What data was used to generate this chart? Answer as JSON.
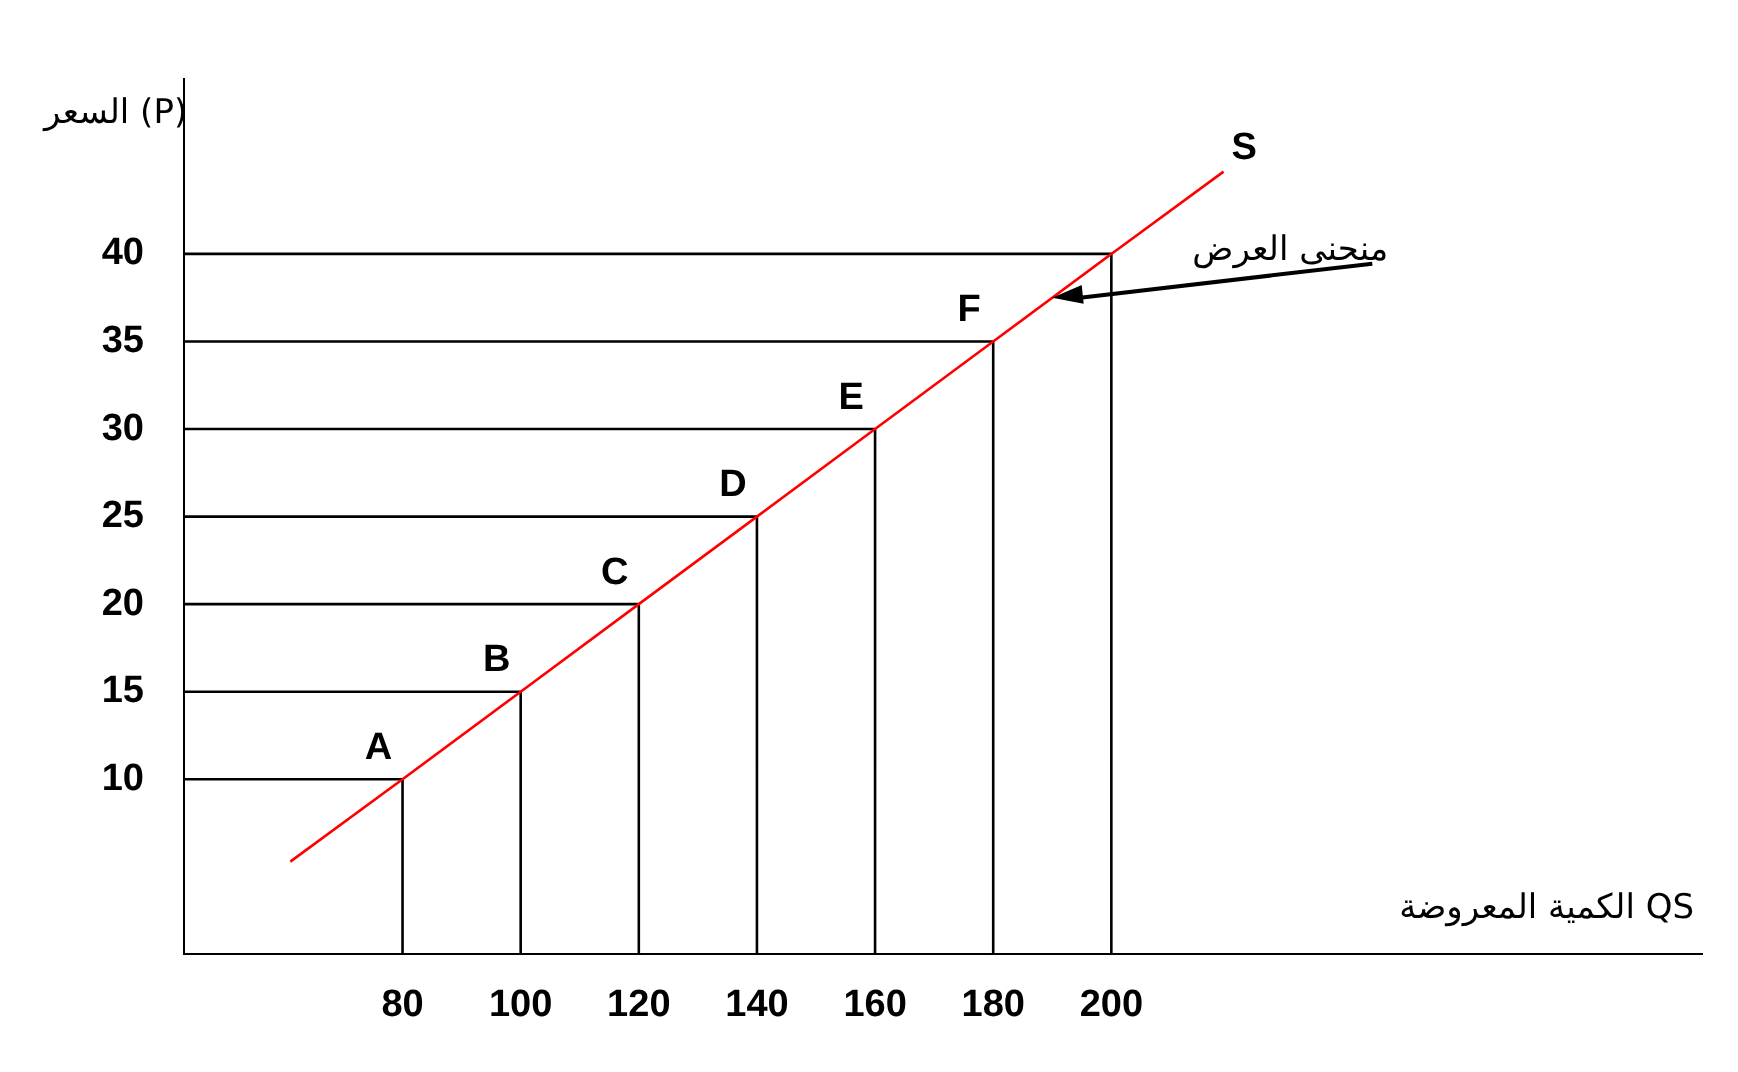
{
  "chart_data": {
    "type": "line",
    "xlabel": "الكمية المعروضة QS",
    "ylabel": "السعر (P)",
    "x": [
      61,
      80,
      100,
      120,
      140,
      160,
      180,
      200,
      219
    ],
    "series": [
      {
        "name": "S",
        "color": "#ff0000",
        "values": [
          5.3,
          10,
          15,
          20,
          25,
          30,
          35,
          40,
          44.7
        ]
      },
      {
        "color": "#000000",
        "x": [
          43,
          80,
          80
        ],
        "values": [
          10,
          10,
          0
        ]
      },
      {
        "color": "#000000",
        "x": [
          43,
          100,
          100
        ],
        "values": [
          15,
          15,
          0
        ]
      },
      {
        "color": "#000000",
        "x": [
          43,
          120,
          120
        ],
        "values": [
          20,
          20,
          0
        ]
      },
      {
        "color": "#000000",
        "x": [
          43,
          140,
          140
        ],
        "values": [
          25,
          25,
          0
        ]
      },
      {
        "color": "#000000",
        "x": [
          43,
          160,
          160
        ],
        "values": [
          30,
          30,
          0
        ]
      },
      {
        "color": "#000000",
        "x": [
          43,
          180,
          180
        ],
        "values": [
          35,
          35,
          0
        ]
      },
      {
        "color": "#000000",
        "x": [
          43,
          200,
          200
        ],
        "values": [
          40,
          40,
          0
        ]
      }
    ],
    "xlim": [
      43,
      300
    ],
    "xticks": [
      80,
      100,
      120,
      140,
      160,
      180,
      200
    ],
    "ylim": [
      0,
      50
    ],
    "yticks": [
      10,
      15,
      20,
      25,
      30,
      35,
      40
    ],
    "annotations": [
      {
        "text": "A",
        "x": 80,
        "y": 10
      },
      {
        "text": "B",
        "x": 100,
        "y": 15
      },
      {
        "text": "C",
        "x": 120,
        "y": 20
      },
      {
        "text": "D",
        "x": 140,
        "y": 25
      },
      {
        "text": "E",
        "x": 160,
        "y": 30
      },
      {
        "text": "F",
        "x": 180,
        "y": 35
      },
      "منحنى العرض"
    ],
    "marker": "none",
    "line_style": "solid",
    "legend": false
  }
}
